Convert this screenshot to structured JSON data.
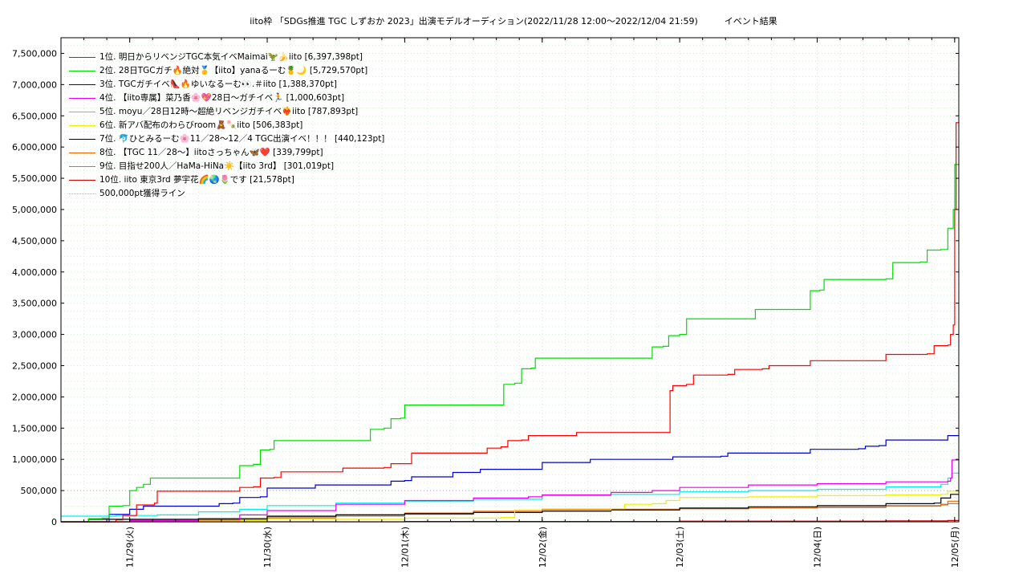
{
  "chart_data": {
    "type": "line",
    "title": "iito枠 「SDGs推進 TGC しずおか 2023」出演モデルオーディション(2022/11/28 12:00〜2022/12/04 21:59)　　　イベント結果",
    "xlabel": "",
    "ylabel": "",
    "x_ticks": [
      "11/29(火)",
      "11/30(水)",
      "12/01(木)",
      "12/02(金)",
      "12/03(土)",
      "12/04(日)",
      "12/05(月)"
    ],
    "xlim": [
      -0.5,
      6.03
    ],
    "ylim": [
      0,
      7750000
    ],
    "y_ticks": [
      0,
      500000,
      1000000,
      1500000,
      2000000,
      2500000,
      3000000,
      3500000,
      4000000,
      4500000,
      5000000,
      5500000,
      6000000,
      6500000,
      7000000,
      7500000
    ],
    "y_tick_labels": [
      "0",
      "500,000",
      "1,000,000",
      "1,500,000",
      "2,000,000",
      "2,500,000",
      "3,000,000",
      "3,500,000",
      "4,000,000",
      "4,500,000",
      "5,000,000",
      "5,500,000",
      "6,000,000",
      "6,500,000",
      "7,000,000",
      "7,500,000"
    ],
    "grid": true,
    "legend_position": "top-left",
    "series": [
      {
        "name": "1位. 明日からリベンジTGC本気イベMaimai🦖🍌iito [6,397,398pt]",
        "color": "#ff0000",
        "points": [
          [
            -0.5,
            0
          ],
          [
            -0.25,
            0
          ],
          [
            -0.1,
            30000
          ],
          [
            -0.05,
            100000
          ],
          [
            0.0,
            100000
          ],
          [
            0.05,
            270000
          ],
          [
            0.15,
            270000
          ],
          [
            0.18,
            300000
          ],
          [
            0.2,
            490000
          ],
          [
            0.75,
            490000
          ],
          [
            0.8,
            550000
          ],
          [
            0.9,
            560000
          ],
          [
            0.95,
            700000
          ],
          [
            1.05,
            710000
          ],
          [
            1.1,
            800000
          ],
          [
            1.5,
            800000
          ],
          [
            1.55,
            860000
          ],
          [
            1.85,
            870000
          ],
          [
            1.9,
            930000
          ],
          [
            2.0,
            930000
          ],
          [
            2.05,
            1100000
          ],
          [
            2.55,
            1100000
          ],
          [
            2.6,
            1180000
          ],
          [
            2.7,
            1200000
          ],
          [
            2.75,
            1300000
          ],
          [
            2.85,
            1310000
          ],
          [
            2.9,
            1380000
          ],
          [
            3.2,
            1380000
          ],
          [
            3.25,
            1430000
          ],
          [
            3.9,
            1430000
          ],
          [
            3.93,
            2100000
          ],
          [
            3.95,
            2180000
          ],
          [
            4.05,
            2200000
          ],
          [
            4.1,
            2350000
          ],
          [
            4.35,
            2360000
          ],
          [
            4.4,
            2440000
          ],
          [
            4.6,
            2450000
          ],
          [
            4.65,
            2500000
          ],
          [
            4.9,
            2500000
          ],
          [
            4.95,
            2580000
          ],
          [
            5.45,
            2580000
          ],
          [
            5.5,
            2680000
          ],
          [
            5.8,
            2690000
          ],
          [
            5.85,
            2820000
          ],
          [
            5.95,
            2830000
          ],
          [
            5.97,
            3000000
          ],
          [
            5.99,
            3150000
          ],
          [
            6.0,
            5000000
          ],
          [
            6.01,
            6390000
          ],
          [
            6.03,
            6397398
          ]
        ]
      },
      {
        "name": "2位. 28日TGCガチ🔥絶対🥇【iito】yanaるーむ🍍🌙 [5,729,570pt]",
        "color": "#00dd00",
        "points": [
          [
            -0.5,
            0
          ],
          [
            -0.4,
            0
          ],
          [
            -0.3,
            50000
          ],
          [
            -0.2,
            60000
          ],
          [
            -0.15,
            250000
          ],
          [
            -0.05,
            260000
          ],
          [
            0.0,
            500000
          ],
          [
            0.05,
            550000
          ],
          [
            0.1,
            600000
          ],
          [
            0.15,
            700000
          ],
          [
            0.75,
            700000
          ],
          [
            0.8,
            900000
          ],
          [
            0.9,
            920000
          ],
          [
            0.95,
            1150000
          ],
          [
            1.02,
            1160000
          ],
          [
            1.05,
            1300000
          ],
          [
            1.7,
            1300000
          ],
          [
            1.75,
            1480000
          ],
          [
            1.85,
            1500000
          ],
          [
            1.9,
            1650000
          ],
          [
            1.97,
            1660000
          ],
          [
            2.0,
            1870000
          ],
          [
            2.7,
            1870000
          ],
          [
            2.72,
            2200000
          ],
          [
            2.8,
            2220000
          ],
          [
            2.85,
            2450000
          ],
          [
            2.92,
            2460000
          ],
          [
            2.95,
            2620000
          ],
          [
            3.75,
            2620000
          ],
          [
            3.8,
            2800000
          ],
          [
            3.88,
            2810000
          ],
          [
            3.92,
            2980000
          ],
          [
            4.0,
            3000000
          ],
          [
            4.05,
            3250000
          ],
          [
            4.5,
            3250000
          ],
          [
            4.55,
            3400000
          ],
          [
            4.9,
            3400000
          ],
          [
            4.95,
            3700000
          ],
          [
            5.02,
            3710000
          ],
          [
            5.05,
            3880000
          ],
          [
            5.5,
            3890000
          ],
          [
            5.55,
            4150000
          ],
          [
            5.75,
            4160000
          ],
          [
            5.8,
            4350000
          ],
          [
            5.9,
            4360000
          ],
          [
            5.95,
            4700000
          ],
          [
            5.99,
            5000000
          ],
          [
            6.0,
            5720000
          ],
          [
            6.03,
            5729570
          ]
        ]
      },
      {
        "name": "3位. TGCガチイベ👠🔥ゆいなるーむ👀.＃iito [1,388,370pt]",
        "color": "#0000cc",
        "points": [
          [
            -0.5,
            0
          ],
          [
            -0.2,
            0
          ],
          [
            -0.15,
            120000
          ],
          [
            -0.05,
            120000
          ],
          [
            0.0,
            200000
          ],
          [
            0.05,
            200000
          ],
          [
            0.1,
            250000
          ],
          [
            0.6,
            250000
          ],
          [
            0.65,
            290000
          ],
          [
            0.75,
            300000
          ],
          [
            0.8,
            390000
          ],
          [
            0.95,
            400000
          ],
          [
            1.0,
            540000
          ],
          [
            1.3,
            540000
          ],
          [
            1.35,
            590000
          ],
          [
            1.85,
            590000
          ],
          [
            1.9,
            650000
          ],
          [
            2.0,
            660000
          ],
          [
            2.05,
            720000
          ],
          [
            2.3,
            720000
          ],
          [
            2.35,
            790000
          ],
          [
            2.5,
            790000
          ],
          [
            2.55,
            840000
          ],
          [
            2.95,
            840000
          ],
          [
            3.0,
            950000
          ],
          [
            3.3,
            950000
          ],
          [
            3.35,
            1000000
          ],
          [
            3.9,
            1000000
          ],
          [
            3.95,
            1040000
          ],
          [
            4.3,
            1050000
          ],
          [
            4.35,
            1100000
          ],
          [
            4.9,
            1100000
          ],
          [
            4.95,
            1160000
          ],
          [
            5.3,
            1170000
          ],
          [
            5.35,
            1210000
          ],
          [
            5.45,
            1220000
          ],
          [
            5.5,
            1310000
          ],
          [
            5.9,
            1310000
          ],
          [
            5.95,
            1380000
          ],
          [
            6.03,
            1388370
          ]
        ]
      },
      {
        "name": "4位. 【iito専属】菜乃香🌸💖28日〜ガチイベ🏃 [1,000,603pt]",
        "color": "#ee00ee",
        "points": [
          [
            -0.5,
            0
          ],
          [
            -0.1,
            0
          ],
          [
            0.0,
            20000
          ],
          [
            0.5,
            30000
          ],
          [
            0.8,
            110000
          ],
          [
            1.0,
            180000
          ],
          [
            1.5,
            280000
          ],
          [
            2.0,
            340000
          ],
          [
            2.5,
            380000
          ],
          [
            2.9,
            400000
          ],
          [
            3.0,
            430000
          ],
          [
            3.5,
            470000
          ],
          [
            3.8,
            500000
          ],
          [
            4.0,
            550000
          ],
          [
            4.5,
            590000
          ],
          [
            5.0,
            610000
          ],
          [
            5.5,
            640000
          ],
          [
            5.95,
            650000
          ],
          [
            5.97,
            700000
          ],
          [
            5.98,
            990000
          ],
          [
            6.03,
            1000603
          ]
        ]
      },
      {
        "name": "5位. moyu／28日12時〜超絶リベンジガチイベ❤️‍🔥iito [787,893pt]",
        "color": "#00eeee",
        "points": [
          [
            -0.5,
            90000
          ],
          [
            -0.3,
            90000
          ],
          [
            -0.1,
            100000
          ],
          [
            0.2,
            110000
          ],
          [
            0.5,
            160000
          ],
          [
            0.8,
            200000
          ],
          [
            1.0,
            260000
          ],
          [
            1.5,
            300000
          ],
          [
            2.0,
            330000
          ],
          [
            2.5,
            360000
          ],
          [
            3.0,
            420000
          ],
          [
            3.5,
            440000
          ],
          [
            4.0,
            480000
          ],
          [
            4.5,
            500000
          ],
          [
            5.0,
            520000
          ],
          [
            5.5,
            560000
          ],
          [
            5.9,
            600000
          ],
          [
            5.95,
            700000
          ],
          [
            5.98,
            780000
          ],
          [
            6.03,
            787893
          ]
        ]
      },
      {
        "name": "6位. 新アバ配布のわらびroom🧸🍡iito [506,383pt]",
        "color": "#eeee00",
        "points": [
          [
            -0.5,
            0
          ],
          [
            0.0,
            20000
          ],
          [
            1.0,
            40000
          ],
          [
            2.0,
            60000
          ],
          [
            2.7,
            70000
          ],
          [
            2.8,
            190000
          ],
          [
            3.5,
            210000
          ],
          [
            3.6,
            280000
          ],
          [
            3.8,
            290000
          ],
          [
            3.9,
            340000
          ],
          [
            4.0,
            390000
          ],
          [
            4.5,
            400000
          ],
          [
            5.0,
            420000
          ],
          [
            5.5,
            430000
          ],
          [
            5.9,
            440000
          ],
          [
            5.95,
            490000
          ],
          [
            6.03,
            506383
          ]
        ]
      },
      {
        "name": "7位. 🐬ひとみるーむ🌸11／28〜12／4 TGC出演イベ！！！ [440,123pt]",
        "color": "#000000",
        "points": [
          [
            -0.5,
            0
          ],
          [
            -0.4,
            0
          ],
          [
            -0.3,
            40000
          ],
          [
            0.5,
            50000
          ],
          [
            1.0,
            90000
          ],
          [
            1.5,
            110000
          ],
          [
            2.0,
            130000
          ],
          [
            2.5,
            150000
          ],
          [
            3.0,
            170000
          ],
          [
            3.5,
            190000
          ],
          [
            4.0,
            220000
          ],
          [
            4.5,
            240000
          ],
          [
            5.0,
            260000
          ],
          [
            5.5,
            290000
          ],
          [
            5.85,
            300000
          ],
          [
            5.9,
            380000
          ],
          [
            5.97,
            440000
          ],
          [
            6.03,
            440123
          ]
        ]
      },
      {
        "name": "8位. 【TGC 11／28〜】iitoさっちゃん🦋❤️ [339,799pt]",
        "color": "#ee6600",
        "points": [
          [
            -0.5,
            0
          ],
          [
            0.0,
            20000
          ],
          [
            0.5,
            50000
          ],
          [
            1.0,
            80000
          ],
          [
            1.5,
            110000
          ],
          [
            2.0,
            140000
          ],
          [
            2.5,
            170000
          ],
          [
            3.0,
            200000
          ],
          [
            3.5,
            200000
          ],
          [
            4.0,
            210000
          ],
          [
            4.5,
            220000
          ],
          [
            5.0,
            240000
          ],
          [
            5.5,
            260000
          ],
          [
            5.9,
            280000
          ],
          [
            5.95,
            330000
          ],
          [
            6.03,
            339799
          ]
        ]
      },
      {
        "name": "9位. 目指せ200人／HaMa-HiNa☀️【iito 3rd】 [301,019pt]",
        "color": "#888888",
        "points": [
          [
            -0.5,
            0
          ],
          [
            0.0,
            10000
          ],
          [
            0.5,
            30000
          ],
          [
            1.0,
            60000
          ],
          [
            1.5,
            90000
          ],
          [
            2.0,
            120000
          ],
          [
            2.5,
            150000
          ],
          [
            3.0,
            180000
          ],
          [
            3.5,
            190000
          ],
          [
            4.0,
            210000
          ],
          [
            4.5,
            220000
          ],
          [
            5.0,
            230000
          ],
          [
            5.5,
            250000
          ],
          [
            5.9,
            270000
          ],
          [
            5.95,
            290000
          ],
          [
            6.03,
            301019
          ]
        ]
      },
      {
        "name": "10位. iito 東京3rd 夢宇花🌈🌏🌷です [21,578pt]",
        "color": "#cc0000",
        "points": [
          [
            -0.5,
            0
          ],
          [
            2.0,
            5000
          ],
          [
            4.0,
            10000
          ],
          [
            5.5,
            15000
          ],
          [
            5.9,
            15000
          ],
          [
            5.95,
            20000
          ],
          [
            6.03,
            21578
          ]
        ]
      }
    ],
    "threshold_line": {
      "name": "500,000pt獲得ライン",
      "color": "#aaaaaa",
      "points": [
        [
          -0.5,
          500000
        ],
        [
          6.03,
          500000
        ]
      ]
    }
  }
}
